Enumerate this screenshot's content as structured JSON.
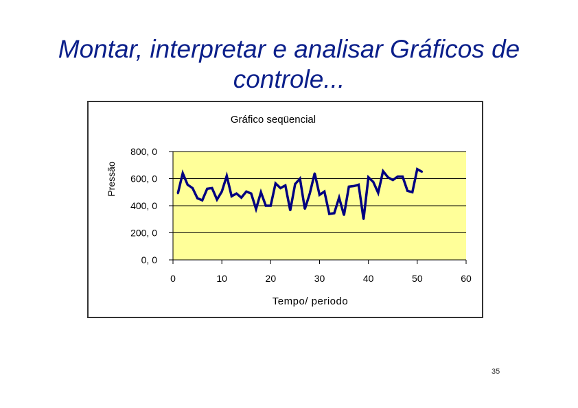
{
  "slide": {
    "title_line1": "Montar, interpretar e analisar Gráficos de",
    "title_line2": "controle...",
    "page_number": "35"
  },
  "chart_data": {
    "type": "line",
    "title": "Gráfico seqüencial",
    "xlabel": "Tempo/ periodo",
    "ylabel": "Pressão",
    "xlim": [
      0,
      60
    ],
    "ylim": [
      0,
      800
    ],
    "x_ticks": [
      0,
      10,
      20,
      30,
      40,
      50,
      60
    ],
    "x_tick_labels": [
      "0",
      "10",
      "20",
      "30",
      "40",
      "50",
      "60"
    ],
    "y_ticks": [
      0,
      200,
      400,
      600,
      800
    ],
    "y_tick_labels": [
      "0, 0",
      "200, 0",
      "400, 0",
      "600, 0",
      "800, 0"
    ],
    "grid": "horizontal",
    "plot_background": "#ffff99",
    "line_color": "#000080",
    "x": [
      1,
      2,
      3,
      4,
      5,
      6,
      7,
      8,
      9,
      10,
      11,
      12,
      13,
      14,
      15,
      16,
      17,
      18,
      19,
      20,
      21,
      22,
      23,
      24,
      25,
      26,
      27,
      28,
      29,
      30,
      31,
      32,
      33,
      34,
      35,
      36,
      37,
      38,
      39,
      40,
      41,
      42,
      43,
      44,
      45,
      46,
      47,
      48,
      49,
      50,
      51
    ],
    "values": [
      490,
      640,
      555,
      530,
      455,
      440,
      525,
      530,
      445,
      505,
      620,
      470,
      490,
      460,
      505,
      490,
      375,
      500,
      400,
      400,
      565,
      530,
      550,
      365,
      560,
      600,
      375,
      490,
      640,
      480,
      505,
      340,
      345,
      460,
      330,
      540,
      545,
      555,
      300,
      610,
      575,
      495,
      655,
      610,
      590,
      615,
      615,
      510,
      500,
      670,
      650
    ]
  }
}
